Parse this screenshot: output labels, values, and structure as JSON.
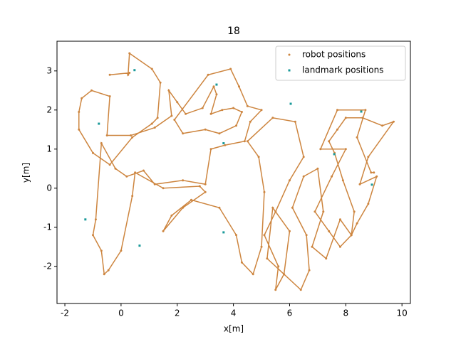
{
  "chart_data": {
    "type": "scatter",
    "title": "18",
    "x_label": "x[m]",
    "y_label": "y[m]",
    "xlim": [
      -2.28,
      10.3
    ],
    "ylim": [
      -2.95,
      3.76
    ],
    "xticks": [
      -2,
      0,
      2,
      4,
      6,
      8,
      10
    ],
    "yticks": [
      -2,
      -1,
      0,
      1,
      2,
      3
    ],
    "legend": "upper right",
    "series": [
      {
        "name": "robot positions",
        "color": "#cd853f",
        "connected": true,
        "x": [
          -0.4,
          0.3,
          0.25,
          0.3,
          1.1,
          1.4,
          1.3,
          1.1,
          0.4,
          -0.4,
          -1.0,
          -1.5,
          -1.5,
          -1.4,
          -1.05,
          -0.4,
          -0.5,
          0.35,
          1.2,
          1.8,
          1.7,
          2.0,
          2.3,
          2.9,
          3.3,
          3.4,
          3.2,
          3.6,
          4.0,
          4.3,
          4.1,
          3.5,
          3.0,
          2.2,
          1.9,
          3.1,
          3.9,
          4.2,
          4.5,
          5.0,
          4.6,
          4.4,
          3.7,
          3.2,
          3.0,
          2.2,
          1.2,
          0.8,
          0.2,
          -0.2,
          -0.7,
          -0.9,
          -1.0,
          -0.7,
          -0.6,
          -0.45,
          0.0,
          0.4,
          0.5,
          1.5,
          2.8,
          3.0,
          2.2,
          1.5,
          1.8,
          2.5,
          3.5,
          4.1,
          4.3,
          4.7,
          5.0,
          5.1,
          4.9,
          4.5,
          5.4,
          6.2,
          6.5,
          6.0,
          5.5,
          5.1,
          5.6,
          5.5,
          5.8,
          6.0,
          5.4,
          5.2,
          6.4,
          6.7,
          6.6,
          6.1,
          6.5,
          7.0,
          7.2,
          6.8,
          7.3,
          7.8,
          8.2,
          8.3,
          7.9,
          7.6,
          7.4,
          7.7,
          8.0,
          8.6,
          9.3,
          9.7,
          8.8,
          8.5,
          9.1,
          8.8,
          8.4,
          8.2,
          7.8,
          7.4,
          6.9,
          7.5,
          8.0,
          7.1,
          7.7,
          8.7,
          8.4,
          8.9,
          9.0
        ],
        "y": [
          2.9,
          2.95,
          2.9,
          3.45,
          3.05,
          2.7,
          1.8,
          1.65,
          1.3,
          0.6,
          0.9,
          1.5,
          1.95,
          2.3,
          2.5,
          2.35,
          1.35,
          1.35,
          1.55,
          1.85,
          2.5,
          2.2,
          1.9,
          2.05,
          2.6,
          2.4,
          1.9,
          2.0,
          2.05,
          1.95,
          1.6,
          1.4,
          1.5,
          1.4,
          1.75,
          2.9,
          3.05,
          2.6,
          2.1,
          2.0,
          1.7,
          1.2,
          1.1,
          1.0,
          0.1,
          0.2,
          0.1,
          0.45,
          0.3,
          0.5,
          1.15,
          -0.8,
          -1.2,
          -1.6,
          -2.2,
          -2.1,
          -1.6,
          -0.2,
          0.4,
          0.0,
          0.05,
          -0.1,
          -0.5,
          -1.1,
          -0.7,
          -0.3,
          -0.5,
          -1.2,
          -1.9,
          -2.2,
          -1.5,
          -0.1,
          0.8,
          1.2,
          1.8,
          1.7,
          0.8,
          0.2,
          -0.6,
          -1.2,
          -2.0,
          -2.6,
          -2.2,
          -1.1,
          -0.5,
          -1.8,
          -2.6,
          -2.1,
          -1.2,
          -0.5,
          0.3,
          0.5,
          -0.6,
          -1.5,
          -1.8,
          -0.8,
          -1.2,
          -0.6,
          0.2,
          0.9,
          1.2,
          1.5,
          1.8,
          1.8,
          1.6,
          1.7,
          0.8,
          0.1,
          0.3,
          -0.4,
          -0.9,
          -1.2,
          -1.5,
          -1.1,
          -0.6,
          0.3,
          1.0,
          1.0,
          2.0,
          2.0,
          1.3,
          0.4,
          0.4
        ]
      },
      {
        "name": "landmark positions",
        "color": "#1a9a9a",
        "connected": false,
        "x": [
          0.48,
          3.4,
          6.04,
          8.55,
          -0.79,
          3.65,
          7.59,
          8.93,
          -1.27,
          3.65,
          0.66
        ],
        "y": [
          3.02,
          2.65,
          2.16,
          1.96,
          1.65,
          1.15,
          0.87,
          0.09,
          -0.8,
          -1.13,
          -1.47
        ]
      }
    ]
  }
}
